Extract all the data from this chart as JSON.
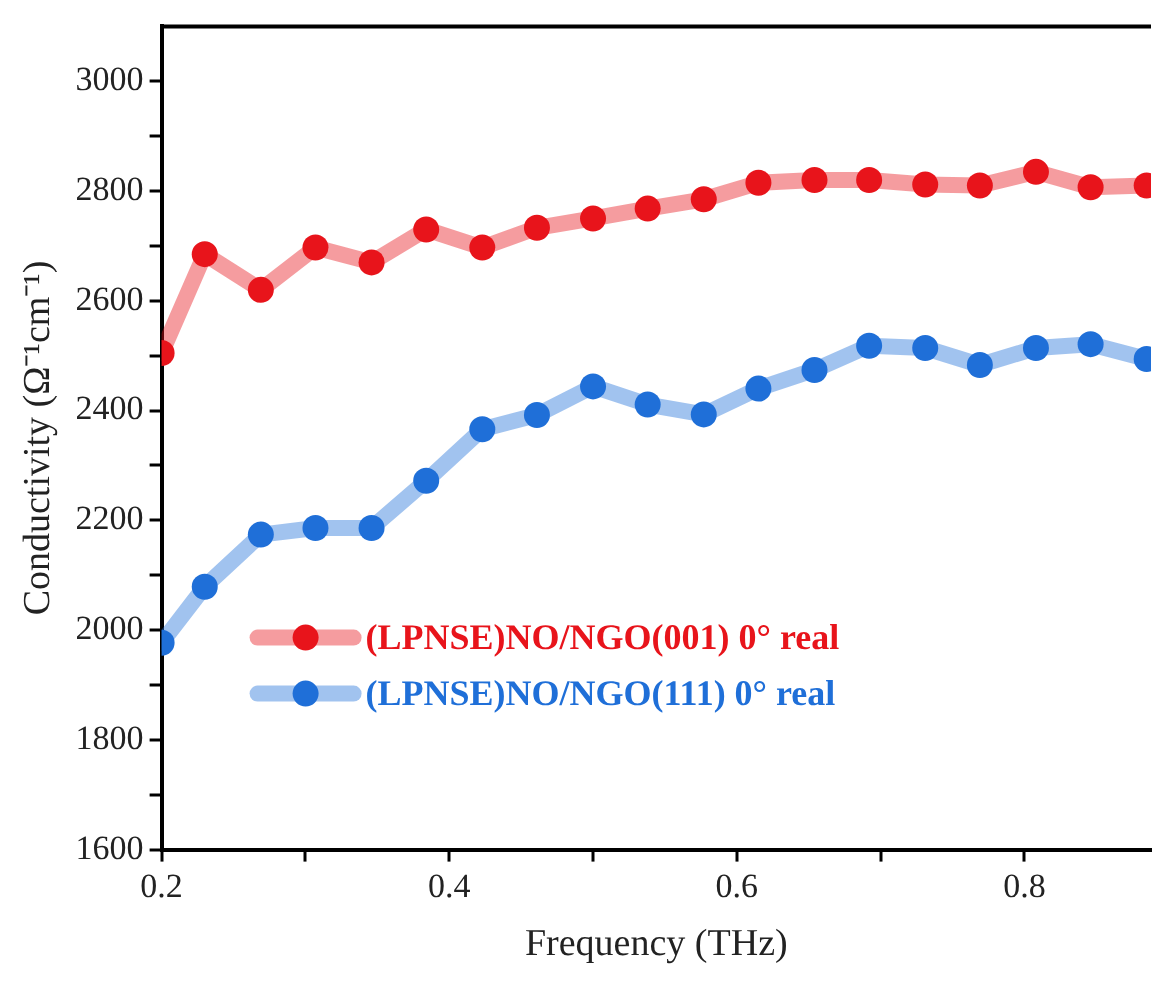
{
  "chart_data": {
    "type": "line",
    "xlabel": "Frequency (THz)",
    "ylabel": "Conductivity (Ω⁻¹cm⁻¹)",
    "x": [
      0.2,
      0.23,
      0.269,
      0.307,
      0.346,
      0.384,
      0.423,
      0.461,
      0.5,
      0.538,
      0.577,
      0.615,
      0.654,
      0.692,
      0.731,
      0.769,
      0.808,
      0.846,
      0.885
    ],
    "series": [
      {
        "name": "(LPNSE)NO/NGO(001) 0° real",
        "color": "#e8141b",
        "values": [
          2505,
          2685,
          2620,
          2697,
          2670,
          2730,
          2697,
          2733,
          2750,
          2768,
          2785,
          2815,
          2820,
          2820,
          2812,
          2810,
          2835,
          2807,
          2810
        ]
      },
      {
        "name": "(LPNSE)NO/NGO(111) 0° real",
        "color": "#1f6fd8",
        "values": [
          1977,
          2079,
          2174,
          2186,
          2186,
          2272,
          2366,
          2392,
          2444,
          2411,
          2393,
          2440,
          2474,
          2518,
          2514,
          2483,
          2514,
          2521,
          2494
        ]
      }
    ],
    "xlim": [
      0.2,
      0.888
    ],
    "xticks": [
      0.2,
      {
        "value": 0.3,
        "label": null
      },
      0.4,
      {
        "value": 0.5,
        "label": null
      },
      0.6,
      {
        "value": 0.7,
        "label": null
      },
      0.8
    ],
    "ylim": [
      1600,
      3100
    ],
    "yticks": [
      1600,
      {
        "value": 1700,
        "label": null
      },
      1800,
      {
        "value": 1900,
        "label": null
      },
      2000,
      {
        "value": 2100,
        "label": null
      },
      2200,
      {
        "value": 2300,
        "label": null
      },
      2400,
      {
        "value": 2500,
        "label": null
      },
      2600,
      {
        "value": 2700,
        "label": null
      },
      2800,
      {
        "value": 2900,
        "label": null
      },
      3000
    ],
    "grid": false,
    "legend": "bottom left",
    "marker": "circle",
    "line_style": "solid"
  }
}
